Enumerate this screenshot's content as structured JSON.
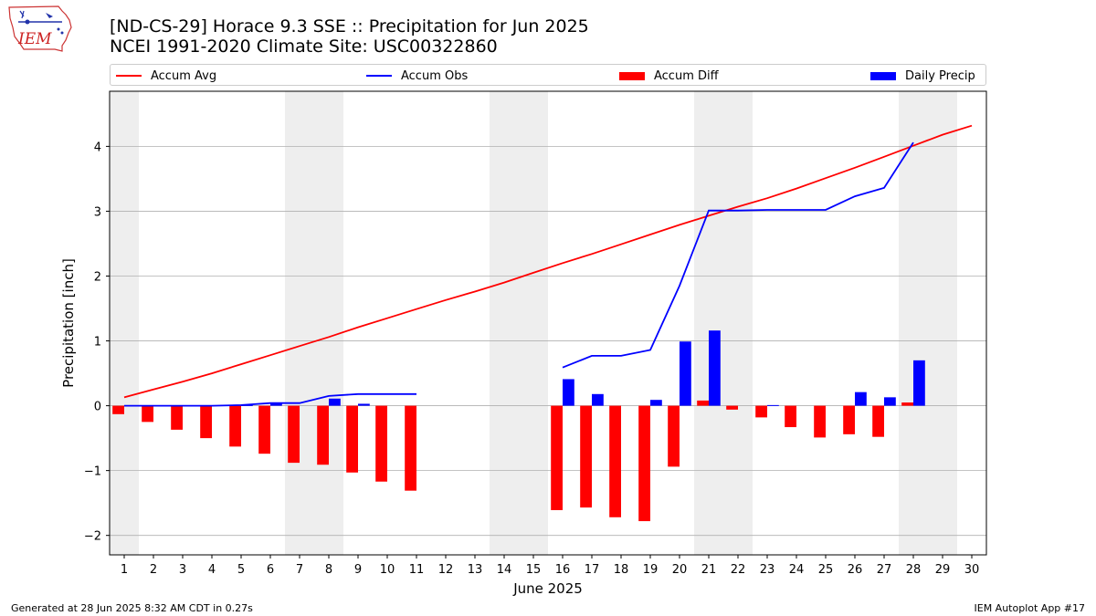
{
  "logo": {
    "text": "IEM",
    "icon": "iowa-state-outline-weather-icon"
  },
  "title": {
    "line1": "[ND-CS-29] Horace 9.3 SSE :: Precipitation for Jun 2025",
    "line2": "NCEI 1991-2020 Climate Site: USC00322860"
  },
  "footer": {
    "left": "Generated at 28 Jun 2025 8:32 AM CDT in 0.27s",
    "right": "IEM Autoplot App #17"
  },
  "colors": {
    "accum_avg": "#ff0000",
    "accum_obs": "#0000ff",
    "accum_diff": "#ff0000",
    "daily_precip": "#0000ff",
    "weekend_shade": "#eeeeee",
    "grid": "#b0b0b0"
  },
  "chart_data": {
    "type": "bar",
    "xlabel": "June 2025",
    "ylabel": "Precipitation [inch]",
    "xlim": [
      0.5,
      30.5
    ],
    "ylim": [
      -2.3,
      4.85
    ],
    "yticks": [
      -2,
      -1,
      0,
      1,
      2,
      3,
      4
    ],
    "ytick_labels": [
      "−2",
      "−1",
      "0",
      "1",
      "2",
      "3",
      "4"
    ],
    "x": [
      1,
      2,
      3,
      4,
      5,
      6,
      7,
      8,
      9,
      10,
      11,
      12,
      13,
      14,
      15,
      16,
      17,
      18,
      19,
      20,
      21,
      22,
      23,
      24,
      25,
      26,
      27,
      28,
      29,
      30
    ],
    "grid": "horizontal",
    "legend_position": "top, above plot",
    "shaded_weekends": [
      [
        0.5,
        1.5
      ],
      [
        6.5,
        8.5
      ],
      [
        13.5,
        15.5
      ],
      [
        20.5,
        22.5
      ],
      [
        27.5,
        29.5
      ]
    ],
    "series": [
      {
        "name": "Accum Avg",
        "kind": "line",
        "values": [
          0.13,
          0.25,
          0.37,
          0.5,
          0.64,
          0.78,
          0.92,
          1.06,
          1.21,
          1.35,
          1.49,
          1.63,
          1.76,
          1.9,
          2.05,
          2.2,
          2.34,
          2.49,
          2.64,
          2.79,
          2.93,
          3.07,
          3.2,
          3.35,
          3.51,
          3.67,
          3.84,
          4.01,
          4.18,
          4.32
        ]
      },
      {
        "name": "Accum Obs",
        "kind": "line",
        "values": [
          0.0,
          0.0,
          0.0,
          0.0,
          0.01,
          0.04,
          0.04,
          0.15,
          0.18,
          0.18,
          0.18,
          null,
          null,
          null,
          null,
          0.59,
          0.77,
          0.77,
          0.86,
          1.85,
          3.01,
          3.01,
          3.02,
          3.02,
          3.02,
          3.23,
          3.36,
          4.06,
          null,
          null
        ]
      },
      {
        "name": "Accum Diff",
        "kind": "bar",
        "values": [
          -0.13,
          -0.25,
          -0.37,
          -0.5,
          -0.63,
          -0.74,
          -0.88,
          -0.91,
          -1.03,
          -1.17,
          -1.31,
          null,
          null,
          null,
          null,
          -1.61,
          -1.57,
          -1.72,
          -1.78,
          -0.94,
          0.08,
          -0.06,
          -0.18,
          -0.33,
          -0.49,
          -0.44,
          -0.48,
          0.05,
          null,
          null
        ]
      },
      {
        "name": "Daily Precip",
        "kind": "bar",
        "values": [
          0.0,
          0.0,
          0.0,
          0.0,
          0.01,
          0.03,
          0.0,
          0.11,
          0.03,
          0.0,
          0.0,
          null,
          null,
          null,
          null,
          0.41,
          0.18,
          0.0,
          0.09,
          0.99,
          1.16,
          0.0,
          0.01,
          0.0,
          0.0,
          0.21,
          0.13,
          0.7,
          null,
          null
        ]
      }
    ]
  }
}
